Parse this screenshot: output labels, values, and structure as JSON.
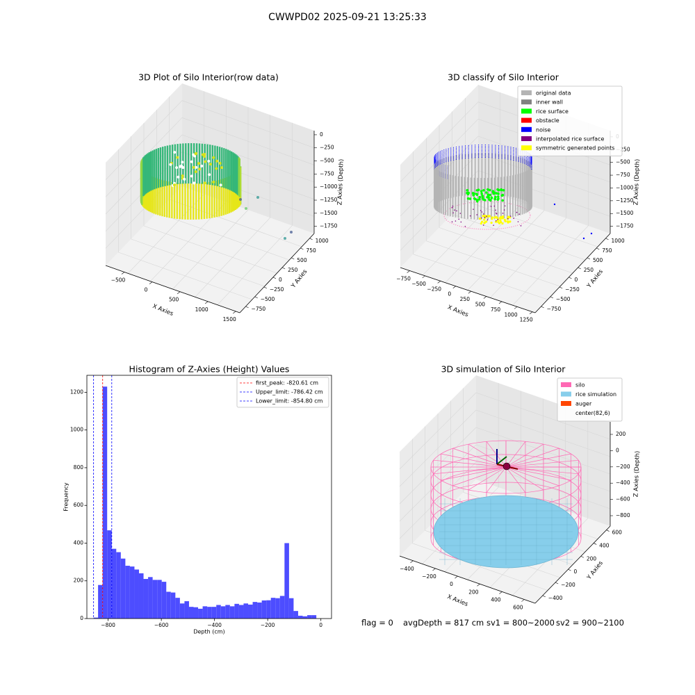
{
  "figure": {
    "suptitle": "CWWPD02 2025-09-21 13:25:33"
  },
  "status_bar": {
    "flag": "flag = 0",
    "avg_depth": "avgDepth = 817 cm",
    "sv1": "sv1 = 800~2000",
    "sv2": "sv2 = 900~2100"
  },
  "colors": {
    "original_data": "#b4b4b4",
    "inner_wall": "#808080",
    "rice_surface": "#00ff00",
    "obstacle": "#ff0000",
    "noise": "#0000ff",
    "interpolated_rice_surface": "#800080",
    "symmetric_generated_points": "#ffff00",
    "histogram_bar": "#4d4dff",
    "silo": "#ff69b4",
    "rice_simulation": "#87ceeb",
    "auger": "#ff4500"
  },
  "chart_data": [
    {
      "type": "scatter",
      "title": "3D Plot of Silo Interior(row data)",
      "xlabel": "X Axies",
      "ylabel": "Y Axies",
      "zlabel": "Z Axies (Depth)",
      "x_ticks": [
        "−500",
        "0",
        "500",
        "1000",
        "1500"
      ],
      "y_ticks": [
        "1000",
        "750",
        "500",
        "250",
        "0",
        "−250",
        "−500",
        "−750"
      ],
      "z_ticks": [
        "0",
        "−250",
        "−500",
        "−750",
        "−1000",
        "−1250",
        "−1500",
        "−1750"
      ],
      "colormap": "viridis"
    },
    {
      "type": "scatter",
      "title": "3D classify of Silo Interior",
      "xlabel": "X Axies",
      "ylabel": "Y Axies",
      "zlabel": "Z Axies (Depth)",
      "x_ticks": [
        "−750",
        "−500",
        "−250",
        "0",
        "250",
        "500",
        "750",
        "1000",
        "1250"
      ],
      "y_ticks": [
        "1000",
        "750",
        "500",
        "250",
        "0",
        "−250",
        "−500",
        "−750"
      ],
      "z_ticks": [
        "0",
        "−250",
        "−500",
        "−750",
        "−1000",
        "−1250",
        "−1500",
        "−1750"
      ],
      "legend_position": "upper-right",
      "legend": [
        {
          "label": "original data",
          "color": "#b4b4b4"
        },
        {
          "label": "inner wall",
          "color": "#808080"
        },
        {
          "label": "rice surface",
          "color": "#00ff00"
        },
        {
          "label": "obstacle",
          "color": "#ff0000"
        },
        {
          "label": "noise",
          "color": "#0000ff"
        },
        {
          "label": "interpolated rice surface",
          "color": "#800080"
        },
        {
          "label": "symmetric generated points",
          "color": "#ffff00"
        }
      ]
    },
    {
      "type": "bar",
      "title": "Histogram of Z-Axies (Height) Values",
      "xlabel": "Depth (cm)",
      "ylabel": "Frequency",
      "xlim": [
        -880,
        40
      ],
      "ylim": [
        0,
        1290
      ],
      "x_ticks": [
        -800,
        -600,
        -400,
        -200,
        0
      ],
      "y_ticks": [
        0,
        200,
        400,
        600,
        800,
        1000,
        1200
      ],
      "bin_start": -855,
      "bin_width": 17.1,
      "values": [
        5,
        178,
        1230,
        468,
        370,
        352,
        318,
        280,
        276,
        260,
        240,
        210,
        220,
        205,
        205,
        195,
        142,
        138,
        110,
        80,
        92,
        62,
        60,
        52,
        65,
        62,
        62,
        72,
        65,
        72,
        65,
        78,
        72,
        80,
        74,
        88,
        85,
        96,
        97,
        110,
        108,
        120,
        400,
        108,
        40,
        15,
        12,
        18,
        18
      ],
      "legend_position": "upper-right",
      "lines": [
        {
          "label": "first_peak: -820.61 cm",
          "x": -820.61,
          "color": "#ff0000"
        },
        {
          "label": "Upper_limit: -786.42 cm",
          "x": -786.42,
          "color": "#0000ff"
        },
        {
          "label": "Lower_limit: -854.80 cm",
          "x": -854.8,
          "color": "#0000ff"
        }
      ]
    },
    {
      "type": "scatter",
      "title": "3D simulation of Silo Interior",
      "xlabel": "X Axies",
      "ylabel": "Y Axies",
      "zlabel": "Z Axies (Depth)",
      "x_ticks": [
        "−400",
        "−200",
        "0",
        "200",
        "400",
        "600"
      ],
      "y_ticks": [
        "600",
        "400",
        "200",
        "0",
        "−200",
        "−400"
      ],
      "z_ticks": [
        "200",
        "0",
        "−200",
        "−400",
        "−600",
        "−800"
      ],
      "legend_position": "upper-right",
      "legend": [
        {
          "label": "silo",
          "color": "#ff69b4"
        },
        {
          "label": "rice simulation",
          "color": "#87ceeb"
        },
        {
          "label": "auger",
          "color": "#ff4500"
        },
        {
          "label": "center(82,6)",
          "color": ""
        }
      ]
    }
  ]
}
